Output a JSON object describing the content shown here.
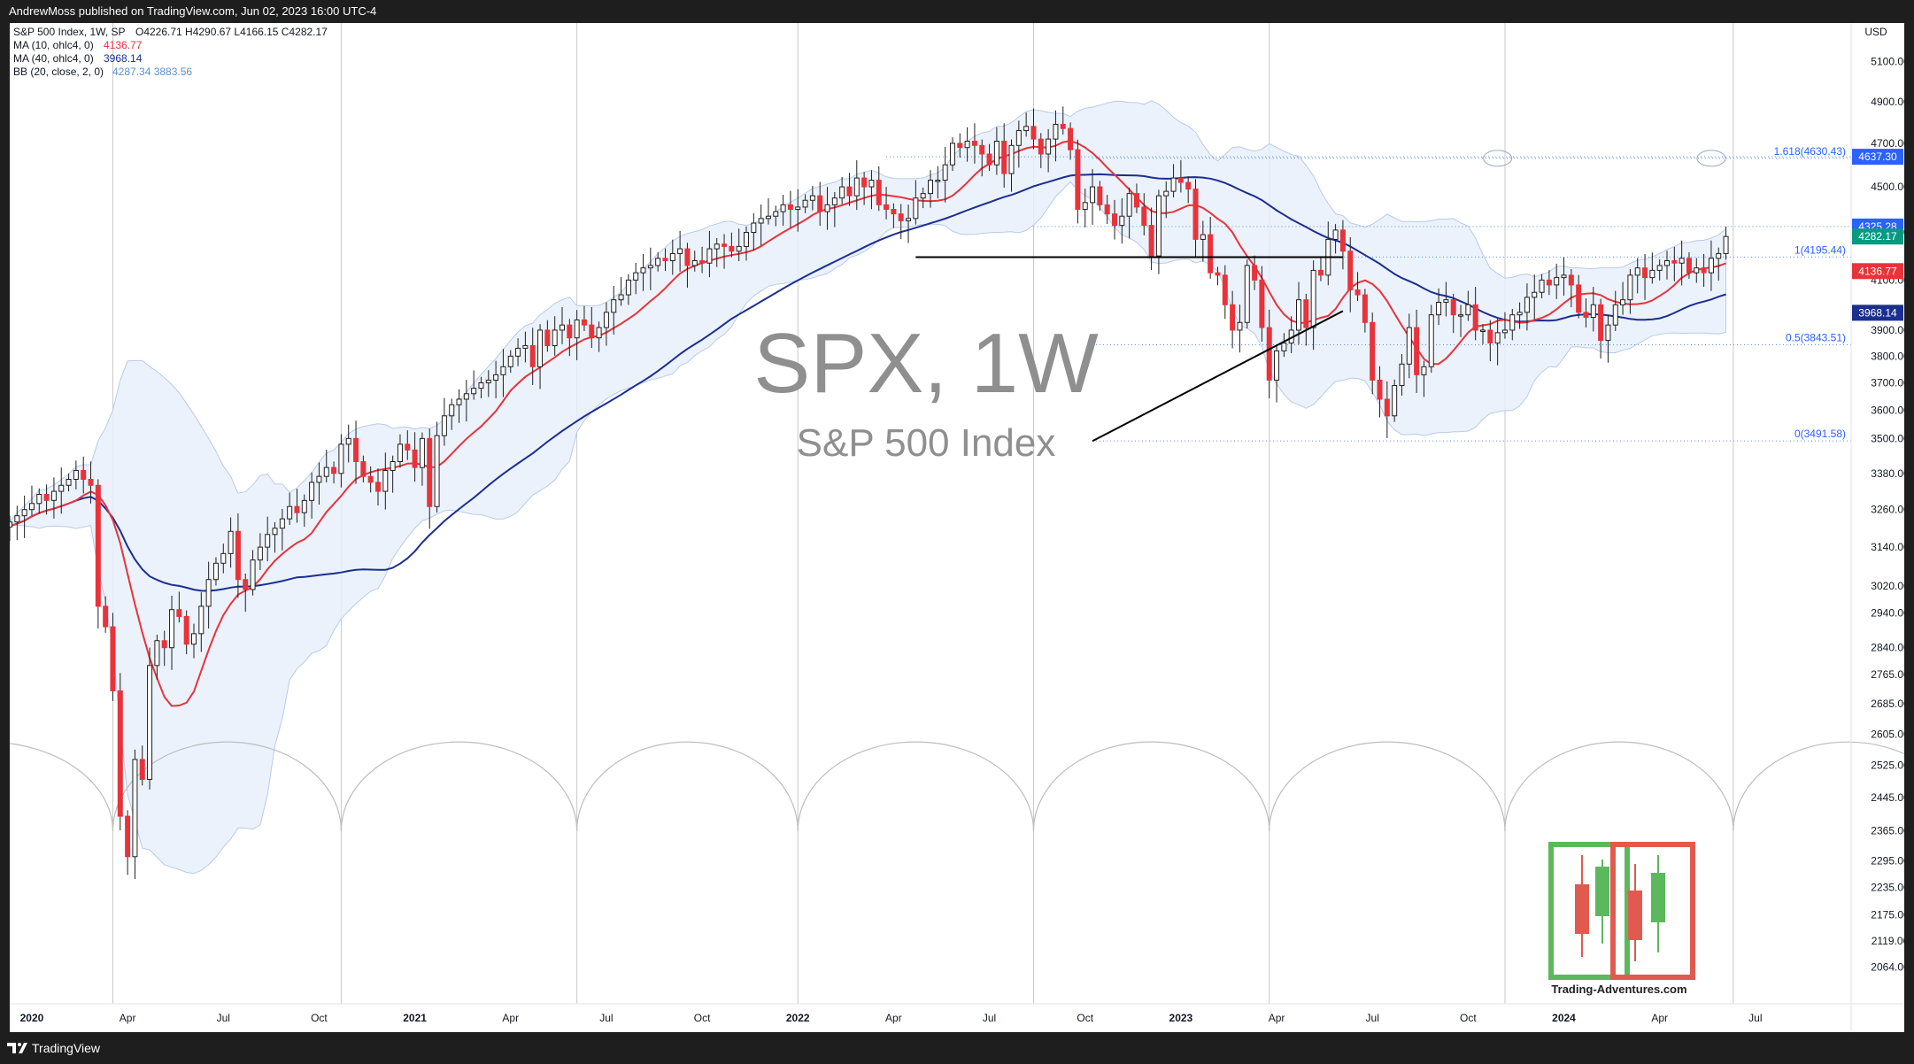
{
  "publisher_line": "AndrewMoss published on TradingView.com, Jun 02, 2023 16:00 UTC-4",
  "footer": {
    "brand": "TradingView"
  },
  "chart_data": {
    "type": "candlestick",
    "title": "S&P 500 Index, 1W, SP",
    "symbol": "SPX",
    "interval": "1W",
    "watermark_title": "SPX, 1W",
    "watermark_subtitle": "S&P 500 Index",
    "currency": "USD",
    "y_scale": "log",
    "ylim": [
      1990,
      5300
    ],
    "ohlc": {
      "open_label": "O4226.71",
      "high_label": "H4290.67",
      "low_label": "L4166.15",
      "close_label": "C4282.17"
    },
    "legend": [
      {
        "label": "S&P 500 Index, 1W, SP",
        "value": "O4226.71  H4290.67  L4166.15  C4282.17",
        "color": "#131722"
      },
      {
        "label": "MA (10, ohlc4, 0)",
        "value": "4136.77",
        "color": "#e8333b"
      },
      {
        "label": "MA (40, ohlc4, 0)",
        "value": "3968.14",
        "color": "#1b2f8f"
      },
      {
        "label": "BB (20, close, 2, 0)",
        "value": "4287.34  3883.56",
        "color": "#5a8fd6"
      }
    ],
    "y_ticks": [
      5100,
      4900,
      4700,
      4500,
      4300,
      4100,
      3900,
      3800,
      3700,
      3600,
      3500,
      3380,
      3260,
      3140,
      3020,
      2940,
      2840,
      2765,
      2685,
      2605,
      2525,
      2445,
      2365,
      2295,
      2235,
      2175,
      2119,
      2064
    ],
    "x_ticks": [
      {
        "label": "2020",
        "date": "2020-01-06",
        "bold": true
      },
      {
        "label": "Apr",
        "date": "2020-04-06",
        "bold": false
      },
      {
        "label": "Jul",
        "date": "2020-07-06",
        "bold": false
      },
      {
        "label": "Oct",
        "date": "2020-10-05",
        "bold": false
      },
      {
        "label": "2021",
        "date": "2021-01-04",
        "bold": true
      },
      {
        "label": "Apr",
        "date": "2021-04-05",
        "bold": false
      },
      {
        "label": "Jul",
        "date": "2021-07-05",
        "bold": false
      },
      {
        "label": "Oct",
        "date": "2021-10-04",
        "bold": false
      },
      {
        "label": "2022",
        "date": "2022-01-03",
        "bold": true
      },
      {
        "label": "Apr",
        "date": "2022-04-04",
        "bold": false
      },
      {
        "label": "Jul",
        "date": "2022-07-04",
        "bold": false
      },
      {
        "label": "Oct",
        "date": "2022-10-03",
        "bold": false
      },
      {
        "label": "2023",
        "date": "2023-01-02",
        "bold": true
      },
      {
        "label": "Apr",
        "date": "2023-04-03",
        "bold": false
      },
      {
        "label": "Jul",
        "date": "2023-07-03",
        "bold": false
      },
      {
        "label": "Oct",
        "date": "2023-10-02",
        "bold": false
      },
      {
        "label": "2024",
        "date": "2024-01-01",
        "bold": true
      },
      {
        "label": "Apr",
        "date": "2024-04-01",
        "bold": false
      },
      {
        "label": "Jul",
        "date": "2024-07-01",
        "bold": false
      }
    ],
    "x_range": [
      "2019-12-16",
      "2024-09-30"
    ],
    "vertical_cycle_lines": [
      "2020-03-23",
      "2020-10-26",
      "2021-06-07",
      "2022-01-03",
      "2022-08-15",
      "2023-03-27",
      "2023-11-06",
      "2024-06-10"
    ],
    "cycle_arcs": {
      "baseline_price": 2365,
      "top_price": 2585
    },
    "price_labels": [
      {
        "text": "4637.30",
        "price": 4637.3,
        "bg": "#2962ff"
      },
      {
        "text": "4325.28",
        "price": 4325.28,
        "bg": "#2962ff"
      },
      {
        "text": "4282.17",
        "price": 4282.17,
        "bg": "#089981"
      },
      {
        "text": "4136.77",
        "price": 4136.77,
        "bg": "#e8333b"
      },
      {
        "text": "3968.14",
        "price": 3968.14,
        "bg": "#1b2f8f"
      }
    ],
    "fibonacci": {
      "start_date": "2022-10-10",
      "levels": [
        {
          "label": "1.618(4630.43)",
          "price": 4630.43
        },
        {
          "label": "1(4195.44)",
          "price": 4195.44
        },
        {
          "label": "0.5(3843.51)",
          "price": 3843.51
        },
        {
          "label": "0(3491.58)",
          "price": 3491.58
        }
      ]
    },
    "dotted_lines": [
      {
        "price": 4637.3,
        "from": "2022-03-28"
      },
      {
        "price": 4325.28,
        "from": "2022-08-15"
      }
    ],
    "target_circles": [
      {
        "date": "2023-10-30",
        "price": 4630
      },
      {
        "date": "2024-05-20",
        "price": 4630
      }
    ],
    "resistance_line": {
      "from": "2022-04-25",
      "to": "2023-06-05",
      "price": 4195
    },
    "support_trendline": {
      "from": [
        "2022-10-10",
        3491
      ],
      "to": [
        "2023-06-05",
        3975
      ]
    },
    "closes": [
      3220,
      3240,
      3260,
      3280,
      3310,
      3290,
      3320,
      3340,
      3360,
      3390,
      3360,
      3340,
      2960,
      2900,
      2720,
      2400,
      2305,
      2540,
      2490,
      2790,
      2860,
      2840,
      2950,
      2930,
      2850,
      2880,
      2960,
      3040,
      3090,
      3120,
      3190,
      3040,
      3010,
      3100,
      3140,
      3180,
      3200,
      3230,
      3270,
      3250,
      3290,
      3350,
      3370,
      3400,
      3380,
      3480,
      3500,
      3420,
      3370,
      3350,
      3320,
      3390,
      3420,
      3480,
      3460,
      3400,
      3500,
      3270,
      3510,
      3580,
      3620,
      3640,
      3660,
      3680,
      3700,
      3710,
      3730,
      3760,
      3800,
      3830,
      3840,
      3760,
      3900,
      3840,
      3900,
      3920,
      3870,
      3940,
      3920,
      3870,
      3910,
      3970,
      4020,
      4040,
      4100,
      4130,
      4150,
      4160,
      4190,
      4180,
      4210,
      4230,
      4160,
      4180,
      4170,
      4230,
      4250,
      4240,
      4220,
      4240,
      4300,
      4340,
      4360,
      4370,
      4390,
      4420,
      4400,
      4410,
      4440,
      4460,
      4390,
      4420,
      4450,
      4500,
      4460,
      4540,
      4500,
      4530,
      4420,
      4400,
      4380,
      4350,
      4360,
      4450,
      4470,
      4530,
      4530,
      4600,
      4700,
      4680,
      4710,
      4690,
      4650,
      4600,
      4710,
      4560,
      4690,
      4760,
      4780,
      4720,
      4650,
      4720,
      4790,
      4770,
      4670,
      4400,
      4430,
      4500,
      4420,
      4380,
      4330,
      4370,
      4470,
      4410,
      4330,
      4200,
      4460,
      4480,
      4540,
      4520,
      4490,
      4270,
      4290,
      4130,
      4120,
      4000,
      3900,
      3930,
      4160,
      4100,
      3910,
      3710,
      3820,
      3850,
      3900,
      4020,
      3910,
      4140,
      4120,
      4270,
      4310,
      4220,
      4060,
      4040,
      3930,
      3710,
      3640,
      3580,
      3690,
      3770,
      3910,
      3730,
      3760,
      3960,
      4010,
      4020,
      3960,
      3960,
      4000,
      3900,
      3900,
      3850,
      3890,
      3900,
      3960,
      3970,
      4030,
      4050,
      4100,
      4080,
      4110,
      4120,
      4080,
      3970,
      3950,
      4000,
      3860,
      3920,
      4000,
      4020,
      4120,
      4150,
      4110,
      4140,
      4160,
      4180,
      4170,
      4190,
      4130,
      4150,
      4130,
      4190,
      4210,
      4282.17
    ],
    "candles_start_date": "2019-12-16"
  }
}
